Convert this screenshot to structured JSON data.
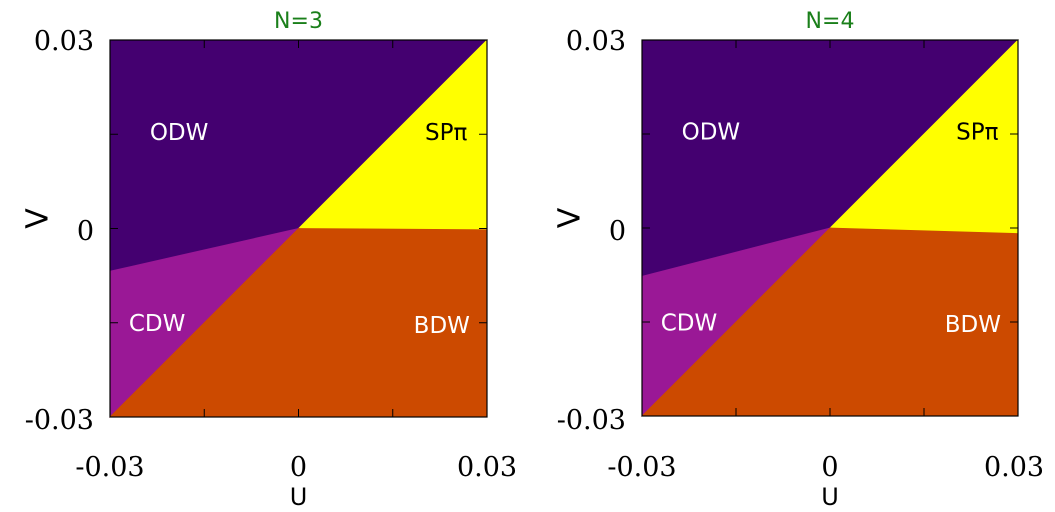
{
  "chart_data": [
    {
      "type": "phase-diagram",
      "title": "N=3",
      "xlabel": "U",
      "ylabel": "V",
      "xlim": [
        -0.03,
        0.03
      ],
      "ylim": [
        -0.03,
        0.03
      ],
      "xticks": [
        "-0.03",
        "0",
        "0.03"
      ],
      "yticks": [
        "0.03",
        "0",
        "-0.03"
      ],
      "minor_ticks": [
        -0.015,
        0.015
      ],
      "regions": [
        {
          "name": "ODW",
          "color": "#440070",
          "label_color": "#ffffff",
          "polygon": [
            [
              -0.03,
              0.03
            ],
            [
              0.03,
              0.03
            ],
            [
              0.0,
              0.0
            ],
            [
              -0.03,
              -0.0068
            ]
          ],
          "label_at": [
            -0.019,
            0.0152
          ]
        },
        {
          "name": "SPπ",
          "color": "#ffff00",
          "label_color": "#000000",
          "polygon": [
            [
              0.0,
              0.0
            ],
            [
              0.03,
              0.03
            ],
            [
              0.03,
              -0.0002
            ]
          ],
          "label_at": [
            0.0235,
            0.0152
          ]
        },
        {
          "name": "CDW",
          "color": "#9a1896",
          "label_color": "#ffffff",
          "polygon": [
            [
              -0.03,
              -0.03
            ],
            [
              0.0,
              0.0
            ],
            [
              -0.03,
              -0.0068
            ]
          ],
          "label_at": [
            -0.0225,
            -0.0152
          ]
        },
        {
          "name": "BDW",
          "color": "#cc4a00",
          "label_color": "#ffffff",
          "polygon": [
            [
              -0.03,
              -0.03
            ],
            [
              0.03,
              -0.03
            ],
            [
              0.03,
              -0.0002
            ],
            [
              0.0,
              0.0
            ]
          ],
          "label_at": [
            0.0228,
            -0.0155
          ]
        }
      ]
    },
    {
      "type": "phase-diagram",
      "title": "N=4",
      "xlabel": "U",
      "ylabel": "V",
      "xlim": [
        -0.03,
        0.03
      ],
      "ylim": [
        -0.03,
        0.03
      ],
      "xticks": [
        "-0.03",
        "0",
        "0.03"
      ],
      "yticks": [
        "0.03",
        "0",
        "-0.03"
      ],
      "minor_ticks": [
        -0.015,
        0.015
      ],
      "regions": [
        {
          "name": "ODW",
          "color": "#440070",
          "label_color": "#ffffff",
          "polygon": [
            [
              -0.03,
              0.03
            ],
            [
              0.03,
              0.03
            ],
            [
              0.0,
              0.0
            ],
            [
              -0.03,
              -0.0077
            ]
          ],
          "label_at": [
            -0.019,
            0.0152
          ]
        },
        {
          "name": "SPπ",
          "color": "#ffff00",
          "label_color": "#000000",
          "polygon": [
            [
              0.0,
              0.0
            ],
            [
              0.03,
              0.03
            ],
            [
              0.03,
              -0.0009
            ]
          ],
          "label_at": [
            0.0235,
            0.0152
          ]
        },
        {
          "name": "CDW",
          "color": "#9a1896",
          "label_color": "#ffffff",
          "polygon": [
            [
              -0.03,
              -0.03
            ],
            [
              0.0,
              0.0
            ],
            [
              -0.03,
              -0.0077
            ]
          ],
          "label_at": [
            -0.0225,
            -0.0152
          ]
        },
        {
          "name": "BDW",
          "color": "#cc4a00",
          "label_color": "#ffffff",
          "polygon": [
            [
              -0.03,
              -0.03
            ],
            [
              0.03,
              -0.03
            ],
            [
              0.03,
              -0.0009
            ],
            [
              0.0,
              0.0
            ]
          ],
          "label_at": [
            0.0228,
            -0.0155
          ]
        }
      ]
    }
  ]
}
